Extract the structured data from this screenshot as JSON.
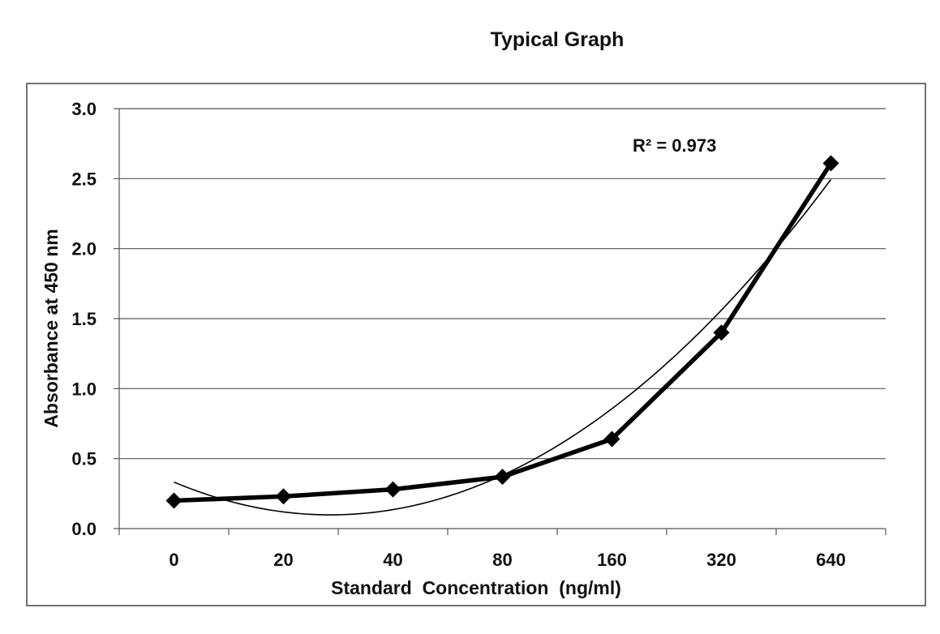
{
  "chart_data": {
    "type": "line",
    "title": "Typical Graph",
    "xlabel": "Standard  Concentration  (ng/ml)",
    "ylabel": "Absorbance at 450 nm",
    "categories": [
      "0",
      "20",
      "40",
      "80",
      "160",
      "320",
      "640"
    ],
    "series": [
      {
        "name": "Absorbance",
        "values": [
          0.2,
          0.23,
          0.28,
          0.37,
          0.64,
          1.4,
          2.61
        ],
        "marker": "diamond",
        "color": "#000000"
      }
    ],
    "trendline": {
      "type": "polynomial",
      "order": 2,
      "values": [
        0.34,
        0.12,
        0.12,
        0.37,
        0.86,
        1.6,
        2.47
      ],
      "annotation": "R² = 0.973",
      "color": "#000000"
    },
    "yticks": [
      "0.0",
      "0.5",
      "1.0",
      "1.5",
      "2.0",
      "2.5",
      "3.0"
    ],
    "ylim": [
      0,
      3.0
    ],
    "grid": true,
    "legend": "none"
  }
}
